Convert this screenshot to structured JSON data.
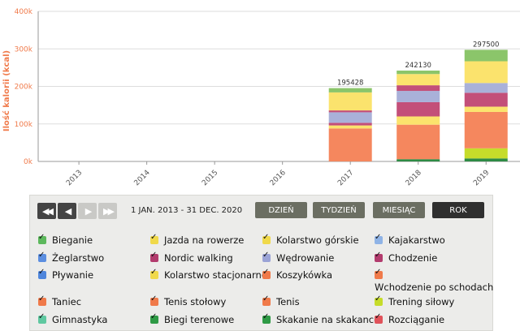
{
  "chart_data": {
    "type": "bar",
    "stacked": true,
    "ylabel": "Ilość kalorii (kcal)",
    "ylim": [
      0,
      400000
    ],
    "yticks": [
      "0k",
      "100k",
      "200k",
      "300k",
      "400k"
    ],
    "categories": [
      "2013",
      "2014",
      "2015",
      "2016",
      "2017",
      "2018",
      "2019"
    ],
    "totals": [
      null,
      null,
      null,
      null,
      195428,
      242130,
      297500
    ],
    "series": [
      {
        "color": "#2e8b45",
        "values": [
          0,
          0,
          0,
          0,
          0,
          6000,
          8000
        ]
      },
      {
        "color": "#c6dc2a",
        "values": [
          0,
          0,
          0,
          0,
          0,
          0,
          27000
        ]
      },
      {
        "color": "#f5875e",
        "values": [
          0,
          0,
          0,
          0,
          88000,
          92000,
          97000
        ]
      },
      {
        "color": "#fbe36d",
        "values": [
          0,
          0,
          0,
          0,
          8000,
          22000,
          14000
        ]
      },
      {
        "color": "#c34f79",
        "values": [
          0,
          0,
          0,
          0,
          7000,
          38000,
          37000
        ]
      },
      {
        "color": "#a9b1d9",
        "values": [
          0,
          0,
          0,
          0,
          28000,
          30000,
          26000
        ]
      },
      {
        "color": "#c34f79",
        "values": [
          0,
          0,
          0,
          0,
          5000,
          15000,
          0
        ]
      },
      {
        "color": "#fbe36d",
        "values": [
          0,
          0,
          0,
          0,
          48000,
          30000,
          58000
        ]
      },
      {
        "color": "#8bc56a",
        "values": [
          0,
          0,
          0,
          0,
          11428,
          9130,
          30500
        ]
      }
    ]
  },
  "controls": {
    "nav": [
      {
        "icon": "first-icon",
        "glyph": "◀◀",
        "enabled": true
      },
      {
        "icon": "prev-icon",
        "glyph": "◀",
        "enabled": true
      },
      {
        "icon": "next-icon",
        "glyph": "▶",
        "enabled": false
      },
      {
        "icon": "last-icon",
        "glyph": "▶▶",
        "enabled": false
      }
    ],
    "range": "1 JAN. 2013   -   31 DEC. 2020",
    "periods": [
      {
        "label": "DZIEŃ",
        "active": false
      },
      {
        "label": "TYDZIEŃ",
        "active": false
      },
      {
        "label": "MIESIĄC",
        "active": false
      },
      {
        "label": "ROK",
        "active": true
      }
    ]
  },
  "legend": [
    {
      "label": "Bieganie",
      "color": "#5cb85c"
    },
    {
      "label": "Jazda na rowerze",
      "color": "#f0d94a"
    },
    {
      "label": "Kolarstwo górskie",
      "color": "#f0d94a"
    },
    {
      "label": "Kajakarstwo",
      "color": "#8fb3e6"
    },
    {
      "label": "Żeglarstwo",
      "color": "#5b8ee0"
    },
    {
      "label": "Nordic walking",
      "color": "#b23b6d"
    },
    {
      "label": "Wędrowanie",
      "color": "#9aa3d6"
    },
    {
      "label": "Chodzenie",
      "color": "#b23b6d"
    },
    {
      "label": "Pływanie",
      "color": "#4f86dc"
    },
    {
      "label": "Kolarstwo stacjonarne",
      "color": "#f0d94a"
    },
    {
      "label": "Koszykówka",
      "color": "#f07a4a"
    },
    {
      "label": "Wchodzenie po schodach",
      "color": "#f07a4a"
    },
    {
      "label": "Taniec",
      "color": "#f07a4a"
    },
    {
      "label": "Tenis stołowy",
      "color": "#f07a4a"
    },
    {
      "label": "Tenis",
      "color": "#f07a4a"
    },
    {
      "label": "Trening siłowy",
      "color": "#c6dc2a"
    },
    {
      "label": "Gimnastyka",
      "color": "#5fc8a0"
    },
    {
      "label": "Biegi terenowe",
      "color": "#2e9a45"
    },
    {
      "label": "Skakanie na skakance",
      "color": "#2e9a45"
    },
    {
      "label": "Rozciąganie",
      "color": "#e0525a"
    }
  ]
}
